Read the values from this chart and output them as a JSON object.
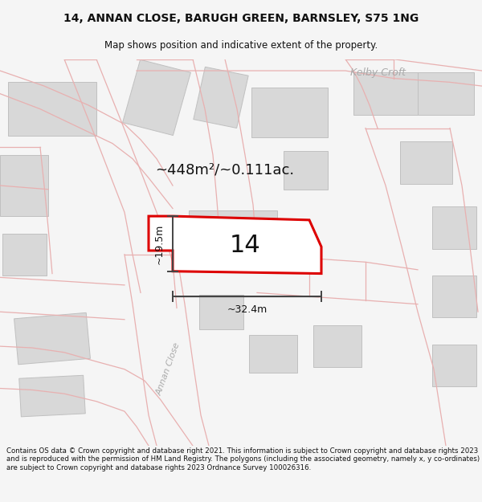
{
  "title_line1": "14, ANNAN CLOSE, BARUGH GREEN, BARNSLEY, S75 1NG",
  "title_line2": "Map shows position and indicative extent of the property.",
  "area_label": "~448m²/~0.111ac.",
  "plot_number": "14",
  "dim_width": "~32.4m",
  "dim_height": "~19.5m",
  "street_label1": "Kelby Croft",
  "street_label2": "Annan Close",
  "footer_text": "Contains OS data © Crown copyright and database right 2021. This information is subject to Crown copyright and database rights 2023 and is reproduced with the permission of HM Land Registry. The polygons (including the associated geometry, namely x, y co-ordinates) are subject to Crown copyright and database rights 2023 Ordnance Survey 100026316.",
  "bg_color": "#f5f5f5",
  "map_bg": "#ffffff",
  "plot_fill": "#ffffff",
  "plot_edge": "#dd0000",
  "road_color": "#f0c0c0",
  "road_line_color": "#e8a0a0",
  "building_color": "#d8d8d8",
  "building_edge": "#c0c0c0",
  "line_color": "#444444",
  "text_color": "#111111",
  "title_color": "#111111",
  "street_text_color": "#aaaaaa"
}
